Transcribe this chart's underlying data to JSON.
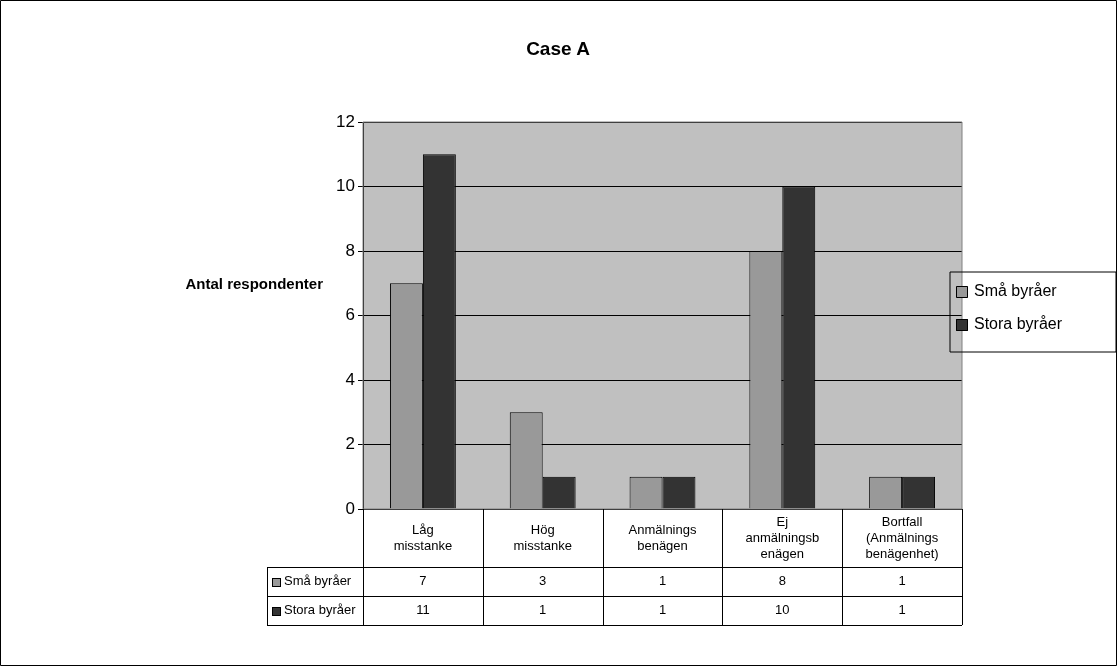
{
  "chart_data": {
    "type": "bar",
    "title": "Case A",
    "ylabel": "Antal respondenter",
    "categories": [
      "Låg misstanke",
      "Hög misstanke",
      "Anmälnings benägen",
      "Ej anmälningsb enägen",
      "Bortfall (Anmälnings benägenhet)"
    ],
    "series": [
      {
        "name": "Små byråer",
        "color": "#999999",
        "values": [
          7,
          3,
          1,
          8,
          1
        ]
      },
      {
        "name": "Stora byråer",
        "color": "#333333",
        "values": [
          11,
          1,
          1,
          10,
          1
        ]
      }
    ],
    "ylim": [
      0,
      12
    ],
    "yticks": [
      0,
      2,
      4,
      6,
      8,
      10,
      12
    ],
    "grid": "y",
    "legend": "right",
    "data_labels": true
  }
}
